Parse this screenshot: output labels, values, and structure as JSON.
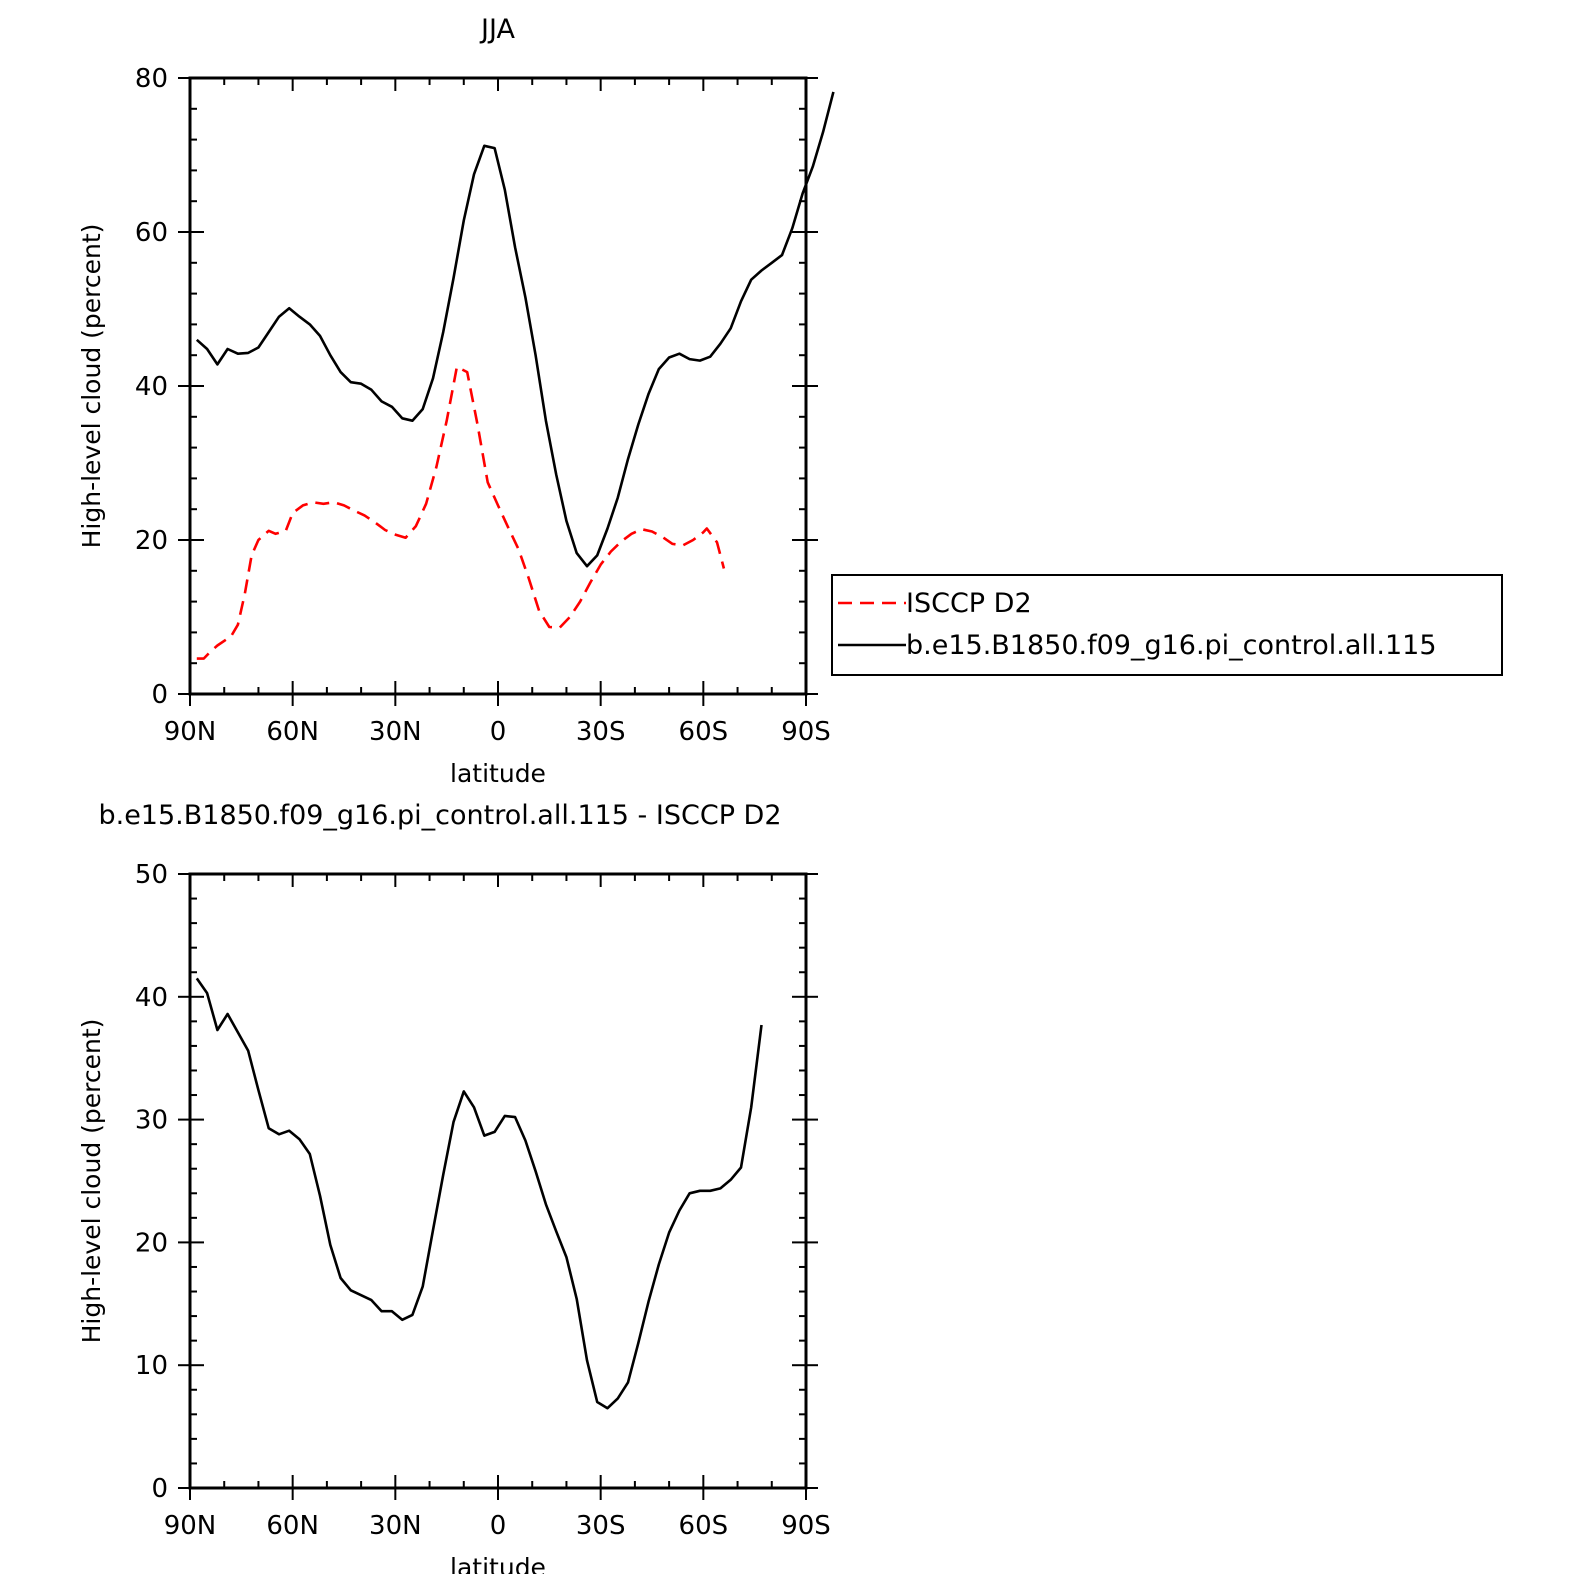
{
  "chart_data": [
    {
      "type": "line",
      "title": "JJA",
      "xlabel": "latitude",
      "ylabel": "High-level cloud (percent)",
      "xlim": [
        90,
        -90
      ],
      "ylim": [
        0,
        80
      ],
      "x_ticks": [
        {
          "value": 90,
          "label": "90N"
        },
        {
          "value": 60,
          "label": "60N"
        },
        {
          "value": 30,
          "label": "30N"
        },
        {
          "value": 0,
          "label": "0"
        },
        {
          "value": -30,
          "label": "30S"
        },
        {
          "value": -60,
          "label": "60S"
        },
        {
          "value": -90,
          "label": "90S"
        }
      ],
      "y_ticks": [
        0,
        20,
        40,
        60,
        80
      ],
      "legend": "right",
      "series": [
        {
          "name": "ISCCP D2",
          "color": "#ff0000",
          "dash": true,
          "points": [
            [
              88,
              4.6
            ],
            [
              86,
              4.6
            ],
            [
              84,
              5.5
            ],
            [
              82,
              6.3
            ],
            [
              78,
              7.5
            ],
            [
              76,
              9
            ],
            [
              74,
              13
            ],
            [
              72,
              18
            ],
            [
              70,
              20
            ],
            [
              67,
              21.2
            ],
            [
              65,
              20.8
            ],
            [
              62,
              21.2
            ],
            [
              60,
              23.5
            ],
            [
              57,
              24.5
            ],
            [
              54,
              24.9
            ],
            [
              51,
              24.7
            ],
            [
              48,
              24.9
            ],
            [
              45,
              24.5
            ],
            [
              42,
              23.8
            ],
            [
              39,
              23.2
            ],
            [
              36,
              22.3
            ],
            [
              33,
              21.3
            ],
            [
              30,
              20.7
            ],
            [
              27,
              20.3
            ],
            [
              24,
              21.8
            ],
            [
              21,
              24.7
            ],
            [
              18,
              29.5
            ],
            [
              15,
              35.5
            ],
            [
              12,
              42.5
            ],
            [
              9,
              41.8
            ],
            [
              6,
              35
            ],
            [
              3,
              27.5
            ],
            [
              0,
              24.5
            ],
            [
              -3,
              21.6
            ],
            [
              -6,
              18.8
            ],
            [
              -9,
              15
            ],
            [
              -12,
              10.8
            ],
            [
              -15,
              8.7
            ],
            [
              -18,
              8.6
            ],
            [
              -21,
              10
            ],
            [
              -24,
              12
            ],
            [
              -27,
              14.5
            ],
            [
              -30,
              16.8
            ],
            [
              -33,
              18.5
            ],
            [
              -36,
              19.8
            ],
            [
              -39,
              20.8
            ],
            [
              -42,
              21.4
            ],
            [
              -45,
              21.1
            ],
            [
              -48,
              20.4
            ],
            [
              -51,
              19.5
            ],
            [
              -54,
              19.3
            ],
            [
              -57,
              20
            ],
            [
              -60,
              21
            ],
            [
              -61,
              21.5
            ],
            [
              -64,
              19.7
            ],
            [
              -66,
              16.3
            ]
          ]
        },
        {
          "name": "b.e15.B1850.f09_g16.pi_control.all.115",
          "color": "#000000",
          "dash": false,
          "points": [
            [
              88,
              46
            ],
            [
              85,
              44.8
            ],
            [
              82,
              42.8
            ],
            [
              79,
              44.8
            ],
            [
              76,
              44.2
            ],
            [
              73,
              44.3
            ],
            [
              70,
              45
            ],
            [
              67,
              47
            ],
            [
              64,
              49
            ],
            [
              61,
              50.1
            ],
            [
              58,
              49
            ],
            [
              55,
              48
            ],
            [
              52,
              46.5
            ],
            [
              49,
              44
            ],
            [
              46,
              41.8
            ],
            [
              43,
              40.5
            ],
            [
              40,
              40.3
            ],
            [
              37,
              39.5
            ],
            [
              34,
              38
            ],
            [
              31,
              37.3
            ],
            [
              28,
              35.8
            ],
            [
              25,
              35.5
            ],
            [
              22,
              37
            ],
            [
              19,
              41
            ],
            [
              16,
              47
            ],
            [
              13,
              54
            ],
            [
              10,
              61.5
            ],
            [
              7,
              67.5
            ],
            [
              4,
              71.2
            ],
            [
              1,
              70.9
            ],
            [
              -2,
              65.5
            ],
            [
              -5,
              58
            ],
            [
              -8,
              51.5
            ],
            [
              -11,
              44
            ],
            [
              -14,
              35.5
            ],
            [
              -17,
              28.5
            ],
            [
              -20,
              22.5
            ],
            [
              -23,
              18.3
            ],
            [
              -26,
              16.6
            ],
            [
              -29,
              18
            ],
            [
              -32,
              21.5
            ],
            [
              -35,
              25.5
            ],
            [
              -38,
              30.5
            ],
            [
              -41,
              35
            ],
            [
              -44,
              39
            ],
            [
              -47,
              42.2
            ],
            [
              -50,
              43.7
            ],
            [
              -53,
              44.2
            ],
            [
              -56,
              43.5
            ],
            [
              -59,
              43.3
            ],
            [
              -62,
              43.8
            ],
            [
              -65,
              45.5
            ],
            [
              -68,
              47.5
            ],
            [
              -71,
              51
            ],
            [
              -74,
              53.8
            ],
            [
              -77,
              55
            ],
            [
              -80,
              56
            ],
            [
              -83,
              57
            ],
            [
              -86,
              60.5
            ],
            [
              -89,
              65
            ],
            [
              -92,
              68.5
            ],
            [
              -95,
              73
            ],
            [
              -98,
              78.2
            ]
          ]
        }
      ]
    },
    {
      "type": "line",
      "title": "b.e15.B1850.f09_g16.pi_control.all.115 - ISCCP D2",
      "xlabel": "latitude",
      "ylabel": "High-level cloud (percent)",
      "xlim": [
        90,
        -90
      ],
      "ylim": [
        0,
        50
      ],
      "x_ticks": [
        {
          "value": 90,
          "label": "90N"
        },
        {
          "value": 60,
          "label": "60N"
        },
        {
          "value": 30,
          "label": "30N"
        },
        {
          "value": 0,
          "label": "0"
        },
        {
          "value": -30,
          "label": "30S"
        },
        {
          "value": -60,
          "label": "60S"
        },
        {
          "value": -90,
          "label": "90S"
        }
      ],
      "y_ticks": [
        0,
        10,
        20,
        30,
        40,
        50
      ],
      "series": [
        {
          "color": "#000000",
          "dash": false,
          "points": [
            [
              88,
              41.5
            ],
            [
              85,
              40.3
            ],
            [
              82,
              37.3
            ],
            [
              79,
              38.6
            ],
            [
              76,
              37.1
            ],
            [
              73,
              35.6
            ],
            [
              70,
              32.4
            ],
            [
              67,
              29.3
            ],
            [
              64,
              28.8
            ],
            [
              61,
              29.1
            ],
            [
              58,
              28.4
            ],
            [
              55,
              27.2
            ],
            [
              52,
              23.8
            ],
            [
              49,
              19.8
            ],
            [
              46,
              17.1
            ],
            [
              43,
              16.1
            ],
            [
              40,
              15.7
            ],
            [
              37,
              15.3
            ],
            [
              34,
              14.4
            ],
            [
              31,
              14.4
            ],
            [
              28,
              13.7
            ],
            [
              25,
              14.1
            ],
            [
              22,
              16.4
            ],
            [
              19,
              21
            ],
            [
              16,
              25.5
            ],
            [
              13,
              29.8
            ],
            [
              10,
              32.3
            ],
            [
              7,
              31
            ],
            [
              4,
              28.7
            ],
            [
              1,
              29
            ],
            [
              -2,
              30.3
            ],
            [
              -5,
              30.2
            ],
            [
              -8,
              28.3
            ],
            [
              -11,
              25.8
            ],
            [
              -14,
              23.1
            ],
            [
              -17,
              20.9
            ],
            [
              -20,
              18.8
            ],
            [
              -23,
              15.4
            ],
            [
              -26,
              10.4
            ],
            [
              -29,
              7
            ],
            [
              -32,
              6.5
            ],
            [
              -35,
              7.3
            ],
            [
              -38,
              8.6
            ],
            [
              -41,
              11.8
            ],
            [
              -44,
              15.2
            ],
            [
              -47,
              18.2
            ],
            [
              -50,
              20.8
            ],
            [
              -53,
              22.6
            ],
            [
              -56,
              24
            ],
            [
              -59,
              24.2
            ],
            [
              -62,
              24.2
            ],
            [
              -65,
              24.4
            ],
            [
              -68,
              25.1
            ],
            [
              -71,
              26.1
            ],
            [
              -74,
              31
            ],
            [
              -77,
              37.7
            ]
          ]
        }
      ]
    }
  ]
}
